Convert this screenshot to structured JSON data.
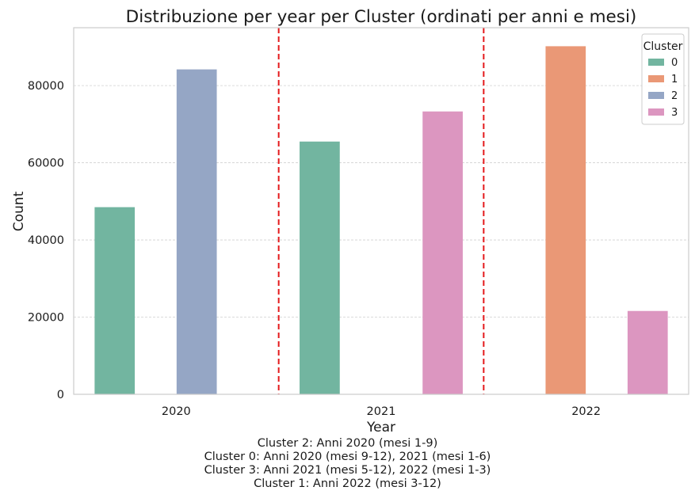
{
  "chart_data": {
    "type": "bar",
    "title": "Distribuzione per year per Cluster (ordinati per anni e mesi)",
    "xlabel": "Year",
    "ylabel": "Count",
    "categories": [
      "2020",
      "2021",
      "2022"
    ],
    "ylim": [
      0,
      95000
    ],
    "yticks": [
      0,
      20000,
      40000,
      60000,
      80000
    ],
    "grid": "horizontal dashed",
    "legend": {
      "title": "Cluster",
      "position": "top-right"
    },
    "series": [
      {
        "name": "0",
        "color": "#72b5a0",
        "values": [
          48500,
          65500,
          0
        ]
      },
      {
        "name": "1",
        "color": "#ea9876",
        "values": [
          0,
          0,
          90200
        ]
      },
      {
        "name": "2",
        "color": "#95a6c5",
        "values": [
          84200,
          0,
          0
        ]
      },
      {
        "name": "3",
        "color": "#dc96c0",
        "values": [
          0,
          73300,
          21600
        ]
      }
    ],
    "separators": {
      "positions": [
        0.5,
        1.5
      ],
      "color": "#e41a1c",
      "style": "dashed"
    },
    "annotations": [
      "Cluster 2: Anni 2020 (mesi 1-9)",
      "Cluster 0: Anni 2020 (mesi 9-12), 2021 (mesi 1-6)",
      "Cluster 3: Anni 2021 (mesi 5-12), 2022 (mesi 1-3)",
      "Cluster 1: Anni 2022 (mesi 3-12)"
    ]
  }
}
